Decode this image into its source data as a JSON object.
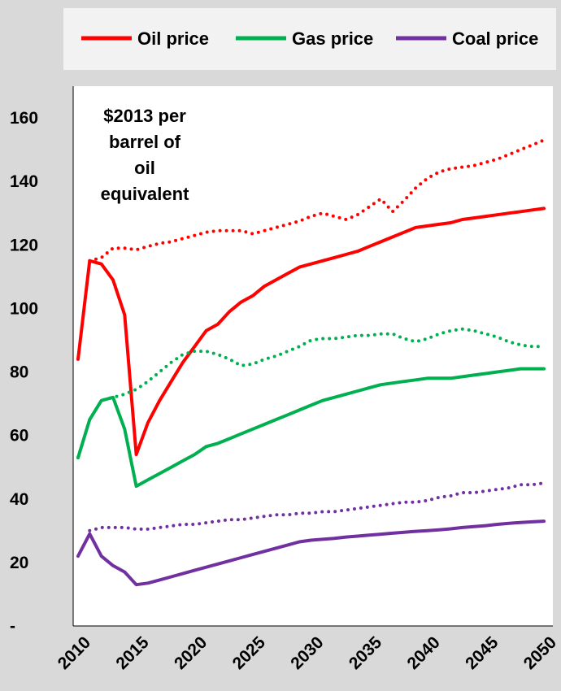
{
  "chart_data": {
    "type": "line",
    "annotation": [
      "$2013 per",
      "barrel of",
      "oil",
      "equivalent"
    ],
    "legend_position": "top",
    "grid": false,
    "xlim": [
      2010,
      2050
    ],
    "ylim": [
      0,
      170
    ],
    "x_ticks": [
      2010,
      2015,
      2020,
      2025,
      2030,
      2035,
      2040,
      2045,
      2050
    ],
    "x_tick_labels": [
      "2010",
      "2015",
      "2020",
      "2025",
      "2030",
      "2035",
      "2040",
      "2045",
      "2050"
    ],
    "y_ticks": [
      0,
      20,
      40,
      60,
      80,
      100,
      120,
      140,
      160
    ],
    "y_tick_labels": [
      "-",
      "20",
      "40",
      "60",
      "80",
      "100",
      "120",
      "140",
      "160"
    ],
    "series": [
      {
        "name": "Oil price",
        "color": "#ff0000",
        "style": "solid",
        "legend": true,
        "x": [
          2010,
          2011,
          2012,
          2013,
          2014,
          2015,
          2016,
          2017,
          2018,
          2019,
          2020,
          2021,
          2022,
          2023,
          2024,
          2025,
          2026,
          2027,
          2028,
          2029,
          2030,
          2031,
          2032,
          2033,
          2034,
          2035,
          2036,
          2037,
          2038,
          2039,
          2040,
          2041,
          2042,
          2043,
          2044,
          2045,
          2046,
          2047,
          2048,
          2049,
          2050
        ],
        "y": [
          84,
          115,
          114,
          109,
          98,
          54,
          64,
          71,
          77,
          83,
          88,
          93,
          95,
          99,
          102,
          104,
          107,
          109,
          111,
          113,
          114,
          115,
          116,
          117,
          118,
          119.5,
          121,
          122.5,
          124,
          125.5,
          126,
          126.5,
          127,
          128,
          128.5,
          129,
          129.5,
          130,
          130.5,
          131,
          131.5
        ]
      },
      {
        "name": "Gas price",
        "color": "#00b050",
        "style": "solid",
        "legend": true,
        "x": [
          2010,
          2011,
          2012,
          2013,
          2014,
          2015,
          2016,
          2017,
          2018,
          2019,
          2020,
          2021,
          2022,
          2023,
          2024,
          2025,
          2026,
          2027,
          2028,
          2029,
          2030,
          2031,
          2032,
          2033,
          2034,
          2035,
          2036,
          2037,
          2038,
          2039,
          2040,
          2041,
          2042,
          2043,
          2044,
          2045,
          2046,
          2047,
          2048,
          2049,
          2050
        ],
        "y": [
          53,
          65,
          71,
          72,
          62,
          44,
          46,
          48,
          50,
          52,
          54,
          56.5,
          57.5,
          59,
          60.5,
          62,
          63.5,
          65,
          66.5,
          68,
          69.5,
          71,
          72,
          73,
          74,
          75,
          76,
          76.5,
          77,
          77.5,
          78,
          78,
          78,
          78.5,
          79,
          79.5,
          80,
          80.5,
          81,
          81,
          81
        ]
      },
      {
        "name": "Coal price",
        "color": "#7030a0",
        "style": "solid",
        "legend": true,
        "x": [
          2010,
          2011,
          2012,
          2013,
          2014,
          2015,
          2016,
          2017,
          2018,
          2019,
          2020,
          2021,
          2022,
          2023,
          2024,
          2025,
          2026,
          2027,
          2028,
          2029,
          2030,
          2031,
          2032,
          2033,
          2034,
          2035,
          2036,
          2037,
          2038,
          2039,
          2040,
          2041,
          2042,
          2043,
          2044,
          2045,
          2046,
          2047,
          2048,
          2049,
          2050
        ],
        "y": [
          22,
          29,
          22,
          19,
          17,
          13,
          13.5,
          14.5,
          15.5,
          16.5,
          17.5,
          18.5,
          19.5,
          20.5,
          21.5,
          22.5,
          23.5,
          24.5,
          25.5,
          26.5,
          27,
          27.3,
          27.6,
          28,
          28.3,
          28.6,
          28.9,
          29.2,
          29.5,
          29.8,
          30,
          30.3,
          30.6,
          31,
          31.3,
          31.6,
          32,
          32.3,
          32.6,
          32.8,
          33
        ]
      },
      {
        "name": "Oil price (dotted)",
        "color": "#ff0000",
        "style": "dotted",
        "legend": false,
        "x": [
          2011,
          2012,
          2013,
          2014,
          2015,
          2016,
          2017,
          2018,
          2019,
          2020,
          2021,
          2022,
          2023,
          2024,
          2025,
          2026,
          2027,
          2028,
          2029,
          2030,
          2031,
          2032,
          2033,
          2034,
          2035,
          2036,
          2037,
          2038,
          2039,
          2040,
          2041,
          2042,
          2043,
          2044,
          2045,
          2046,
          2047,
          2048,
          2049,
          2050
        ],
        "y": [
          115,
          116,
          119,
          119,
          118.5,
          119.5,
          120.5,
          121,
          122,
          123,
          124,
          124.5,
          124.5,
          124.5,
          123.5,
          124.5,
          125.5,
          126.5,
          127.5,
          129,
          130,
          129,
          128,
          129.5,
          132,
          134.5,
          130.5,
          134,
          138,
          141,
          143,
          144,
          144.5,
          145,
          146,
          147,
          148.5,
          150,
          151.5,
          153
        ]
      },
      {
        "name": "Gas price (dotted)",
        "color": "#00b050",
        "style": "dotted",
        "legend": false,
        "x": [
          2010,
          2011,
          2012,
          2013,
          2014,
          2015,
          2016,
          2017,
          2018,
          2019,
          2020,
          2021,
          2022,
          2023,
          2024,
          2025,
          2026,
          2027,
          2028,
          2029,
          2030,
          2031,
          2032,
          2033,
          2034,
          2035,
          2036,
          2037,
          2038,
          2039,
          2040,
          2041,
          2042,
          2043,
          2044,
          2045,
          2046,
          2047,
          2048,
          2049,
          2050
        ],
        "y": [
          53,
          65,
          71,
          72,
          73,
          74.5,
          77,
          80,
          83,
          85.5,
          86.5,
          86.5,
          85.5,
          84,
          82,
          82.5,
          84,
          85,
          86.5,
          88,
          90,
          90.5,
          90.5,
          91,
          91.5,
          91.5,
          92,
          92,
          90.5,
          89.5,
          90.5,
          92,
          93,
          93.5,
          93,
          92,
          91,
          89.5,
          88.5,
          88,
          88
        ]
      },
      {
        "name": "Coal price (dotted)",
        "color": "#7030a0",
        "style": "dotted",
        "legend": false,
        "x": [
          2011,
          2012,
          2013,
          2014,
          2015,
          2016,
          2017,
          2018,
          2019,
          2020,
          2021,
          2022,
          2023,
          2024,
          2025,
          2026,
          2027,
          2028,
          2029,
          2030,
          2031,
          2032,
          2033,
          2034,
          2035,
          2036,
          2037,
          2038,
          2039,
          2040,
          2041,
          2042,
          2043,
          2044,
          2045,
          2046,
          2047,
          2048,
          2049,
          2050
        ],
        "y": [
          30,
          31,
          31,
          31,
          30.5,
          30.5,
          31,
          31.5,
          32,
          32,
          32.5,
          33,
          33.5,
          33.5,
          34,
          34.5,
          35,
          35,
          35.5,
          35.5,
          36,
          36,
          36.5,
          37,
          37.5,
          38,
          38.5,
          39,
          39,
          39.5,
          40.5,
          41,
          42,
          42,
          42.5,
          43,
          43.5,
          44.5,
          44.5,
          45
        ]
      }
    ]
  }
}
